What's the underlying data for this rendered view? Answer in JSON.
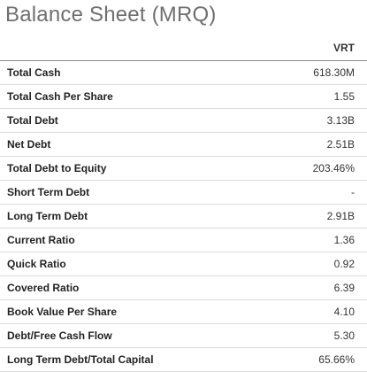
{
  "title": "Balance Sheet (MRQ)",
  "column_header": "VRT",
  "rows": [
    {
      "label": "Total Cash",
      "value": "618.30M"
    },
    {
      "label": "Total Cash Per Share",
      "value": "1.55"
    },
    {
      "label": "Total Debt",
      "value": "3.13B"
    },
    {
      "label": "Net Debt",
      "value": "2.51B"
    },
    {
      "label": "Total Debt to Equity",
      "value": "203.46%"
    },
    {
      "label": "Short Term Debt",
      "value": "-"
    },
    {
      "label": "Long Term Debt",
      "value": "2.91B"
    },
    {
      "label": "Current Ratio",
      "value": "1.36"
    },
    {
      "label": "Quick Ratio",
      "value": "0.92"
    },
    {
      "label": "Covered Ratio",
      "value": "6.39"
    },
    {
      "label": "Book Value Per Share",
      "value": "4.10"
    },
    {
      "label": "Debt/Free Cash Flow",
      "value": "5.30"
    },
    {
      "label": "Long Term Debt/Total Capital",
      "value": "65.66%"
    }
  ]
}
